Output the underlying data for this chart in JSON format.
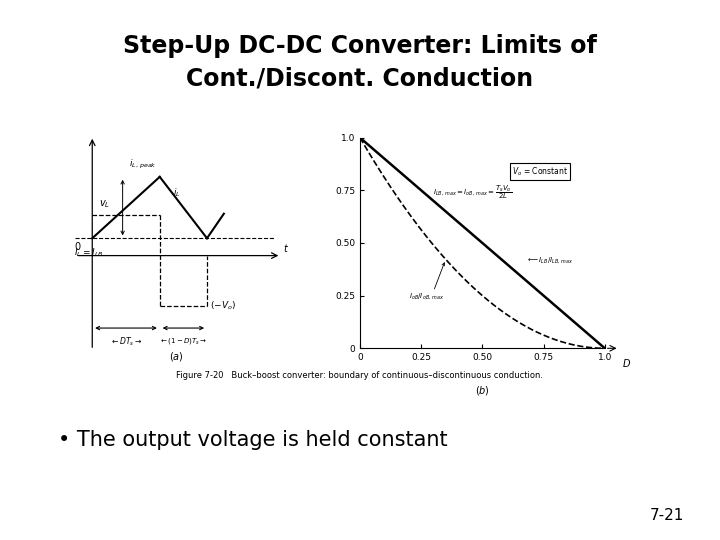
{
  "title_line1": "Step-Up DC-DC Converter: Limits of",
  "title_line2": "Cont./Discont. Conduction",
  "bullet": "• The output voltage is held constant",
  "page_number": "7-21",
  "fig_caption": "Figure 7-20   Buck–boost converter: boundary of continuous–discontinuous conduction.",
  "background": "#ffffff",
  "title_fontsize": 17,
  "bullet_fontsize": 15,
  "page_fontsize": 11
}
